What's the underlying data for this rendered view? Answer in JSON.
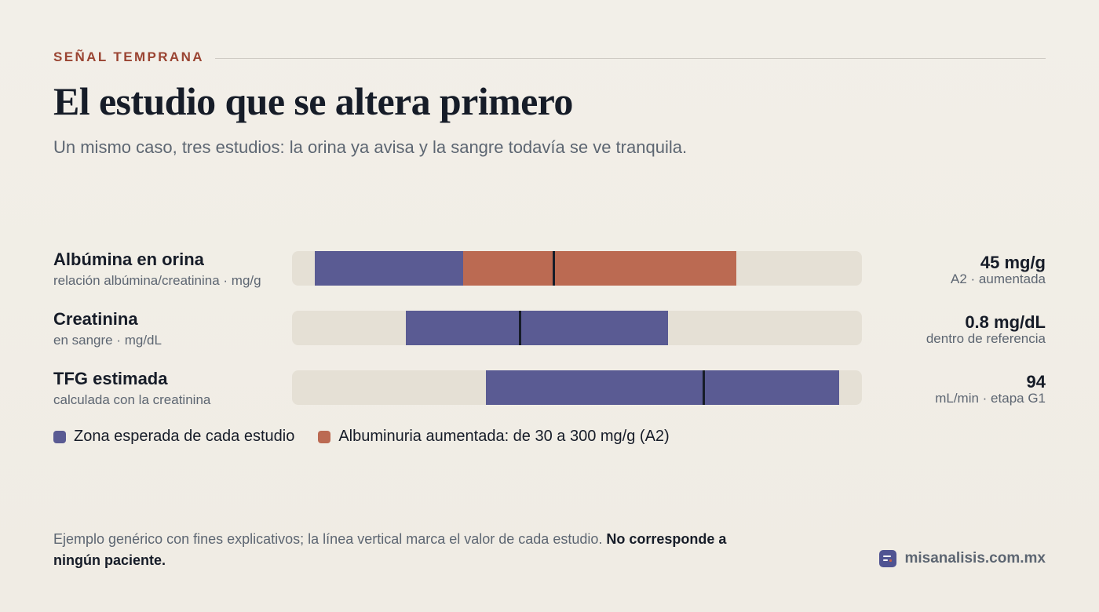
{
  "header": {
    "eyebrow": "SEÑAL TEMPRANA",
    "title": "El estudio que se altera primero",
    "subtitle": "Un mismo caso, tres estudios: la orina ya avisa y la sangre todavía se ve tranquila."
  },
  "colors": {
    "expected": "#5a5b93",
    "albuminuria": "#bb6a52",
    "track": "#e5e0d5",
    "marker": "#161c28",
    "eyebrow": "#9a4432"
  },
  "chart_data": {
    "type": "range-bars",
    "rows": [
      {
        "name": "Albúmina en orina",
        "sublabel": "relación albúmina/creatinina · mg/g",
        "value_label": "45 mg/g",
        "status_label": "A2 · aumentada",
        "marker_fraction": 0.46,
        "segments": [
          {
            "kind": "expected",
            "from": 0.04,
            "to": 0.3
          },
          {
            "kind": "albuminuria",
            "from": 0.3,
            "to": 0.78
          }
        ]
      },
      {
        "name": "Creatinina",
        "sublabel": "en sangre · mg/dL",
        "value_label": "0.8 mg/dL",
        "status_label": "dentro de referencia",
        "marker_fraction": 0.4,
        "segments": [
          {
            "kind": "expected",
            "from": 0.2,
            "to": 0.66
          }
        ]
      },
      {
        "name": "TFG estimada",
        "sublabel": "calculada con la creatinina",
        "value_label": "94",
        "status_label": "mL/min · etapa G1",
        "marker_fraction": 0.722,
        "segments": [
          {
            "kind": "expected",
            "from": 0.34,
            "to": 0.96
          }
        ]
      }
    ]
  },
  "legend": {
    "expected": "Zona esperada de cada estudio",
    "albuminuria": "Albuminuria aumentada: de 30 a 300 mg/g (A2)"
  },
  "footer": {
    "note_text": "Ejemplo genérico con fines explicativos; la línea vertical marca el valor de cada estudio. ",
    "note_bold": "No corresponde a ningún paciente.",
    "brand": "misanalisis.com.mx",
    "brand_icon": "chart-lines-icon"
  }
}
